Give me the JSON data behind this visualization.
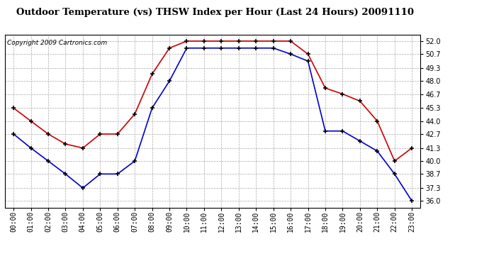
{
  "title": "Outdoor Temperature (vs) THSW Index per Hour (Last 24 Hours) 20091110",
  "copyright": "Copyright 2009 Cartronics.com",
  "hours": [
    0,
    1,
    2,
    3,
    4,
    5,
    6,
    7,
    8,
    9,
    10,
    11,
    12,
    13,
    14,
    15,
    16,
    17,
    18,
    19,
    20,
    21,
    22,
    23
  ],
  "temp_blue": [
    42.7,
    41.3,
    40.0,
    38.7,
    37.3,
    38.7,
    38.7,
    40.0,
    45.3,
    48.0,
    51.3,
    51.3,
    51.3,
    51.3,
    51.3,
    51.3,
    50.7,
    50.0,
    43.0,
    43.0,
    42.0,
    41.0,
    38.7,
    36.0
  ],
  "thsw_red": [
    45.3,
    44.0,
    42.7,
    41.7,
    41.3,
    42.7,
    42.7,
    44.7,
    48.7,
    51.3,
    52.0,
    52.0,
    52.0,
    52.0,
    52.0,
    52.0,
    52.0,
    50.7,
    47.3,
    46.7,
    46.0,
    44.0,
    40.0,
    41.3
  ],
  "ylim_min": 35.35,
  "ylim_max": 52.65,
  "yticks": [
    36.0,
    37.3,
    38.7,
    40.0,
    41.3,
    42.7,
    44.0,
    45.3,
    46.7,
    48.0,
    49.3,
    50.7,
    52.0
  ],
  "blue_color": "#0000cc",
  "red_color": "#cc0000",
  "grid_color": "#aaaaaa",
  "bg_color": "#ffffff",
  "border_color": "#000000",
  "marker": "+",
  "marker_color": "#000000",
  "marker_size": 5,
  "linewidth": 1.2,
  "title_fontsize": 9.5,
  "copyright_fontsize": 6.5,
  "tick_fontsize": 7.0
}
